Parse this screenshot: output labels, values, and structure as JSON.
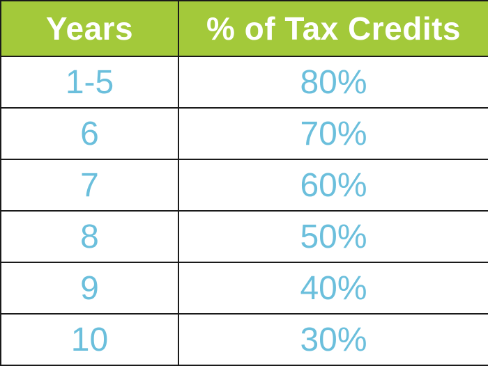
{
  "colors": {
    "header_bg": "#a3c93a",
    "header_text": "#ffffff",
    "cell_text": "#6bbfdc",
    "border": "#1a1a1a"
  },
  "chart_data": {
    "type": "table",
    "columns": [
      "Years",
      "% of Tax Credits"
    ],
    "rows": [
      [
        "1-5",
        "80%"
      ],
      [
        "6",
        "70%"
      ],
      [
        "7",
        "60%"
      ],
      [
        "8",
        "50%"
      ],
      [
        "9",
        "40%"
      ],
      [
        "10",
        "30%"
      ]
    ]
  }
}
